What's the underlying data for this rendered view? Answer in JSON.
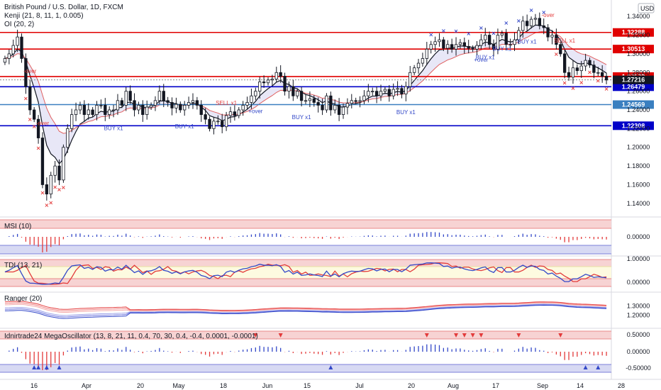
{
  "header": {
    "title": "British Pound / U.S. Dollar, 1D, FXCM",
    "indicator_kenji": "Kenji (21, 8, 11, 1, 0.005)",
    "indicator_oi": "OI (20, 2)",
    "currency": "USD"
  },
  "colors": {
    "candle": "#131722",
    "hline": "#ff0000",
    "hline_blue": "#0000dd",
    "hline_light": "#3a7fc0",
    "band": "#e6e4f6",
    "band_dark": "#c8c6ea",
    "buy": "#3348c8",
    "sell": "#e33b3b",
    "pink": "#f7d3d3",
    "lavender": "#d7d9f3",
    "yellow": "#fdfae0"
  },
  "time_labels": [
    "16",
    "Apr",
    "20",
    "May",
    "18",
    "Jun",
    "15",
    "Jul",
    "20",
    "Aug",
    "17",
    "Sep",
    "14",
    "28"
  ],
  "price_panel": {
    "ticks": [
      "1.34000",
      "1.32000",
      "1.30000",
      "1.28000",
      "1.26000",
      "1.24000",
      "1.22000",
      "1.20000",
      "1.18000",
      "1.16000",
      "1.14000"
    ],
    "horizontal_lines": [
      {
        "label": "1.32288",
        "value": 1.32288,
        "color": "#e00000"
      },
      {
        "label": "1.30513",
        "value": 1.30513,
        "color": "#e00000"
      },
      {
        "label": "1.27572",
        "value": 1.27572,
        "color": "#e00000"
      },
      {
        "label": "1.26479",
        "value": 1.26479,
        "color": "#0000c8"
      },
      {
        "label": "1.24569",
        "value": 1.24569,
        "color": "#3a7fc0"
      },
      {
        "label": "1.22308",
        "value": 1.22308,
        "color": "#0000c8"
      }
    ],
    "current_price": "1.27216",
    "signals": [
      {
        "text": "BUY x1",
        "kind": "buy",
        "i": 26
      },
      {
        "text": "BUY x1",
        "kind": "buy",
        "i": 43
      },
      {
        "text": "SELL x1",
        "kind": "sell",
        "i": 53
      },
      {
        "text": "+over",
        "kind": "buy",
        "i": 60
      },
      {
        "text": "BUY x1",
        "kind": "buy",
        "i": 71
      },
      {
        "text": "BUY x1",
        "kind": "buy",
        "i": 96
      },
      {
        "text": "BUY x1",
        "kind": "buy",
        "i": 115
      },
      {
        "text": "BUY x1",
        "kind": "buy",
        "i": 119
      },
      {
        "text": "+over",
        "kind": "buy",
        "i": 114
      },
      {
        "text": "BUY x1",
        "kind": "buy",
        "i": 125
      },
      {
        "text": "SELL x1",
        "kind": "sell",
        "i": 134
      },
      {
        "text": "-over",
        "kind": "sell",
        "i": 6
      },
      {
        "text": "-over",
        "kind": "sell",
        "i": 9
      },
      {
        "text": "-over",
        "kind": "sell",
        "i": 130
      }
    ]
  },
  "msi_panel": {
    "label": "MSI (10)",
    "ticks": [
      "0.00000"
    ]
  },
  "tdi_panel": {
    "label": "TDI (13, 21)",
    "ticks": [
      "1.00000",
      "0.00000"
    ]
  },
  "ranger_panel": {
    "label": "Ranger (20)",
    "ticks": [
      "1.30000",
      "1.20000"
    ]
  },
  "mega_panel": {
    "label": "Idnirtrade24 MegaOscillator (13, 8, 21, 11, 0.4, 70, 30, 0.4, -0.4, 0.0001, -0.0001)",
    "ticks": [
      "0.50000",
      "0.00000",
      "-0.50000"
    ]
  },
  "chart_data": {
    "type": "candlestick",
    "title": "British Pound / U.S. Dollar, 1D, FXCM",
    "ylim": [
      1.13,
      1.35
    ],
    "x_labels": [
      "16",
      "Apr",
      "20",
      "May",
      "18",
      "Jun",
      "15",
      "Jul",
      "20",
      "Aug",
      "17",
      "Sep",
      "14",
      "28"
    ],
    "close": [
      1.295,
      1.3,
      1.309,
      1.318,
      1.295,
      1.265,
      1.24,
      1.23,
      1.21,
      1.16,
      1.15,
      1.17,
      1.18,
      1.165,
      1.2,
      1.22,
      1.235,
      1.24,
      1.245,
      1.235,
      1.24,
      1.235,
      1.245,
      1.245,
      1.235,
      1.24,
      1.24,
      1.25,
      1.245,
      1.26,
      1.25,
      1.24,
      1.245,
      1.235,
      1.243,
      1.245,
      1.25,
      1.26,
      1.25,
      1.248,
      1.242,
      1.246,
      1.24,
      1.245,
      1.248,
      1.25,
      1.245,
      1.235,
      1.23,
      1.22,
      1.228,
      1.228,
      1.222,
      1.234,
      1.238,
      1.234,
      1.24,
      1.245,
      1.248,
      1.255,
      1.26,
      1.27,
      1.269,
      1.272,
      1.273,
      1.28,
      1.276,
      1.26,
      1.265,
      1.255,
      1.26,
      1.25,
      1.25,
      1.252,
      1.248,
      1.245,
      1.24,
      1.255,
      1.24,
      1.245,
      1.235,
      1.243,
      1.247,
      1.25,
      1.249,
      1.25,
      1.255,
      1.26,
      1.26,
      1.255,
      1.26,
      1.262,
      1.255,
      1.262,
      1.263,
      1.257,
      1.265,
      1.28,
      1.285,
      1.29,
      1.295,
      1.305,
      1.31,
      1.313,
      1.315,
      1.306,
      1.31,
      1.305,
      1.31,
      1.312,
      1.308,
      1.306,
      1.305,
      1.309,
      1.315,
      1.32,
      1.31,
      1.305,
      1.32,
      1.322,
      1.31,
      1.31,
      1.315,
      1.325,
      1.335,
      1.33,
      1.337,
      1.338,
      1.33,
      1.328,
      1.318,
      1.32,
      1.31,
      1.3,
      1.28,
      1.275,
      1.285,
      1.282,
      1.287,
      1.293,
      1.288,
      1.28,
      1.28,
      1.276,
      1.272
    ],
    "series": [
      {
        "name": "MSI (10)"
      },
      {
        "name": "TDI (13, 21)"
      },
      {
        "name": "Ranger (20)"
      },
      {
        "name": "Idnirtrade24 MegaOscillator"
      }
    ]
  }
}
